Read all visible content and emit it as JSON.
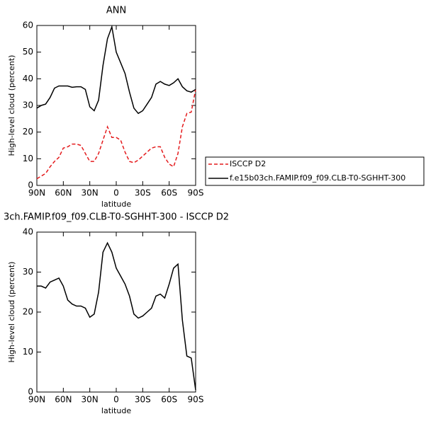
{
  "chart_data": [
    {
      "type": "line",
      "title": "ANN",
      "xlabel": "latitude",
      "ylabel": "High-level cloud (percent)",
      "x": [
        90,
        85,
        80,
        75,
        70,
        65,
        60,
        55,
        50,
        45,
        40,
        35,
        30,
        25,
        20,
        15,
        10,
        5,
        0,
        -5,
        -10,
        -15,
        -20,
        -25,
        -30,
        -35,
        -40,
        -45,
        -50,
        -55,
        -60,
        -65,
        -70,
        -75,
        -80,
        -85,
        -90
      ],
      "series": [
        {
          "name": "ISCCP D2",
          "color": "#e41a1c",
          "dash": true,
          "values": [
            2.5,
            3.5,
            4.5,
            7,
            9,
            10.5,
            14,
            14.5,
            15.5,
            15.5,
            15,
            12,
            9,
            9,
            12,
            17,
            22,
            18,
            18,
            17,
            12.5,
            9,
            8.5,
            9.5,
            11,
            12.5,
            14,
            14.5,
            14.5,
            10.5,
            8,
            7,
            12,
            22,
            27,
            27.5,
            36
          ]
        },
        {
          "name": "f.e15b03ch.FAMIP.f09_f09.CLB-T0-SGHHT-300",
          "color": "#000000",
          "dash": false,
          "values": [
            29,
            30,
            30.5,
            33,
            36.5,
            37.3,
            37.3,
            37.3,
            36.8,
            37,
            37,
            36,
            29.5,
            28,
            32,
            45,
            55,
            59.5,
            50,
            46,
            42,
            35,
            29,
            27,
            28,
            30.5,
            33,
            38,
            39,
            38,
            37.5,
            38.5,
            40,
            37,
            35.5,
            35,
            36
          ]
        }
      ],
      "xlim": [
        90,
        -90
      ],
      "ylim": [
        0,
        60
      ],
      "xticks": [
        {
          "value": 90,
          "label": "90N"
        },
        {
          "value": 60,
          "label": "60N"
        },
        {
          "value": 30,
          "label": "30N"
        },
        0,
        {
          "value": -30,
          "label": "30S"
        },
        {
          "value": -60,
          "label": "60S"
        },
        {
          "value": -90,
          "label": "90S"
        }
      ],
      "yticks": [
        0,
        10,
        20,
        30,
        40,
        50,
        60
      ],
      "legend": "right"
    },
    {
      "type": "line",
      "title": "3ch.FAMIP.f09_f09.CLB-T0-SGHHT-300 - ISCCP D2",
      "xlabel": "latitude",
      "ylabel": "High-level cloud (percent)",
      "x": [
        90,
        85,
        80,
        75,
        70,
        65,
        60,
        55,
        50,
        45,
        40,
        35,
        30,
        25,
        20,
        15,
        10,
        5,
        0,
        -5,
        -10,
        -15,
        -20,
        -25,
        -30,
        -35,
        -40,
        -45,
        -50,
        -55,
        -60,
        -65,
        -70,
        -75,
        -80,
        -85,
        -90
      ],
      "series": [
        {
          "color": "#000000",
          "dash": false,
          "values": [
            26.5,
            26.5,
            26,
            27.5,
            28,
            28.5,
            26.5,
            23,
            22,
            21.5,
            21.5,
            21,
            18.7,
            19.5,
            25,
            35,
            37.3,
            35,
            31,
            29,
            27,
            24,
            19.5,
            18.5,
            19,
            20,
            21,
            24,
            24.5,
            23.5,
            27,
            31,
            32,
            18,
            9,
            8.5,
            0.5
          ]
        }
      ],
      "xlim": [
        90,
        -90
      ],
      "ylim": [
        0,
        40
      ],
      "xticks": [
        {
          "value": 90,
          "label": "90N"
        },
        {
          "value": 60,
          "label": "60N"
        },
        {
          "value": 30,
          "label": "30N"
        },
        0,
        {
          "value": -30,
          "label": "30S"
        },
        {
          "value": -60,
          "label": "60S"
        },
        {
          "value": -90,
          "label": "90S"
        }
      ],
      "yticks": [
        0,
        10,
        20,
        30,
        40
      ]
    }
  ]
}
